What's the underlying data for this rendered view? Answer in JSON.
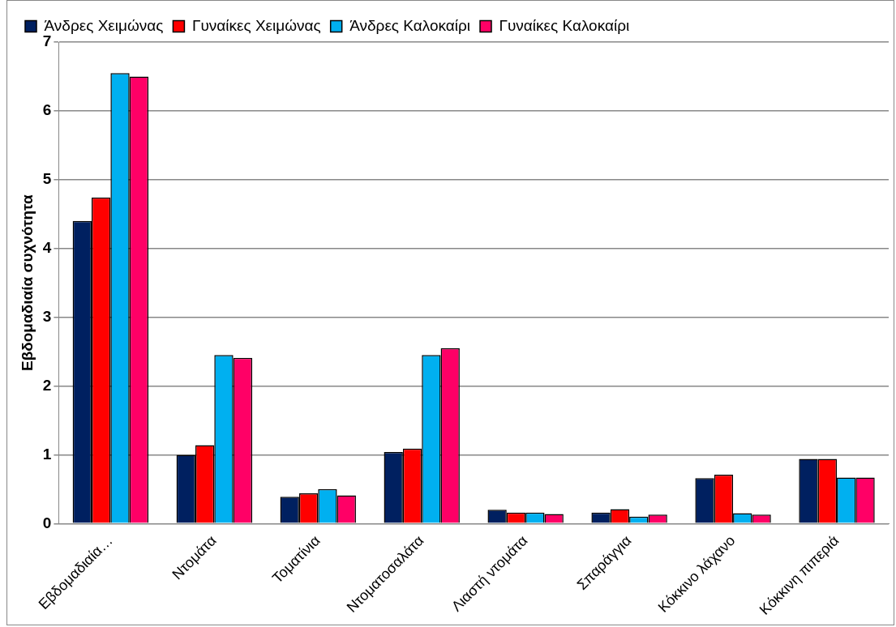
{
  "chart_data": {
    "type": "bar",
    "ylabel": "Εβδομαδιαία συχνότητα",
    "categories": [
      "Εβδομαδιαία…",
      "Ντομάτα",
      "Τοματίνια",
      "Ντοματοσαλάτα",
      "Λιαστή ντομάτα",
      "Σπαράγγια",
      "Κόκκινο λάχανο",
      "Κόκκινη πιπεριά"
    ],
    "series": [
      {
        "name": "Άνδρες Χειμώνας",
        "color": "#002060",
        "values": [
          4.4,
          1.0,
          0.39,
          1.04,
          0.2,
          0.16,
          0.66,
          0.94
        ]
      },
      {
        "name": "Γυναίκες Χειμώνας",
        "color": "#ff0000",
        "values": [
          4.74,
          1.14,
          0.44,
          1.09,
          0.16,
          0.21,
          0.71,
          0.94
        ]
      },
      {
        "name": "Άνδρες Καλοκαίρι",
        "color": "#00b0f0",
        "values": [
          6.55,
          2.45,
          0.5,
          2.45,
          0.16,
          0.1,
          0.15,
          0.67
        ]
      },
      {
        "name": "Γυναίκες Καλοκαίρι",
        "color": "#ff0066",
        "values": [
          6.5,
          2.41,
          0.41,
          2.55,
          0.14,
          0.13,
          0.13,
          0.67
        ]
      }
    ],
    "ylim": [
      0,
      7
    ],
    "yticks": [
      0,
      1,
      2,
      3,
      4,
      5,
      6,
      7
    ],
    "grid": "y",
    "legend": "top"
  }
}
